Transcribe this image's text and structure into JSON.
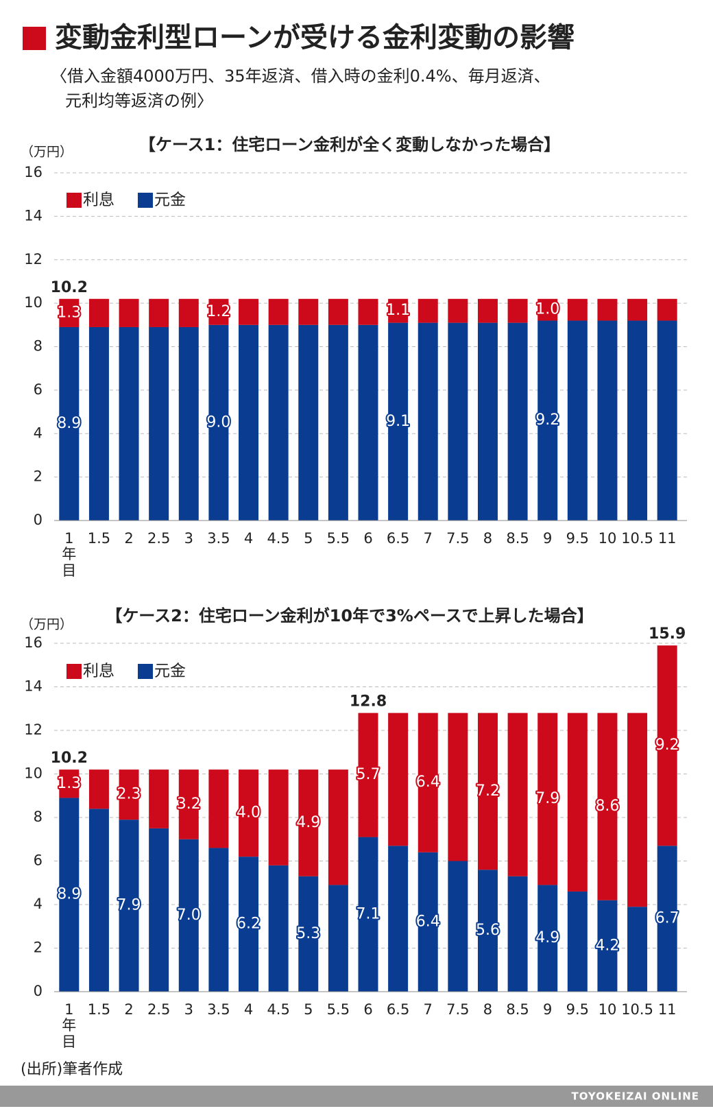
{
  "title": "変動金利型ローンが受ける金利変動の影響",
  "subtitle": [
    "〈借入金額4000万円、35年返済、借入時の金利0.4%、毎月返済、",
    "元利均等返済の例〉"
  ],
  "source": "(出所)筆者作成",
  "footer": "TOYOKEIZAI ONLINE",
  "chart_data": [
    {
      "type": "stacked_bar",
      "title": "【ケース1：住宅ローン金利が全く変動しなかった場合】",
      "y_unit": "（万円）",
      "x_unit": [
        "年",
        "目"
      ],
      "categories": [
        "1",
        "1.5",
        "2",
        "2.5",
        "3",
        "3.5",
        "4",
        "4.5",
        "5",
        "5.5",
        "6",
        "6.5",
        "7",
        "7.5",
        "8",
        "8.5",
        "9",
        "9.5",
        "10",
        "10.5",
        "11"
      ],
      "series": [
        {
          "name": "利息",
          "color": "#cc0a1b",
          "values": [
            1.3,
            1.3,
            1.3,
            1.3,
            1.3,
            1.2,
            1.2,
            1.2,
            1.2,
            1.2,
            1.2,
            1.1,
            1.1,
            1.1,
            1.1,
            1.1,
            1.0,
            1.0,
            1.0,
            1.0,
            1.0
          ],
          "value_labels": [
            "1.3",
            null,
            null,
            null,
            null,
            "1.2",
            null,
            null,
            null,
            null,
            null,
            "1.1",
            null,
            null,
            null,
            null,
            "1.0",
            null,
            null,
            null,
            null
          ]
        },
        {
          "name": "元金",
          "color": "#0a3d91",
          "values": [
            8.9,
            8.9,
            8.9,
            8.9,
            8.9,
            9.0,
            9.0,
            9.0,
            9.0,
            9.0,
            9.0,
            9.1,
            9.1,
            9.1,
            9.1,
            9.1,
            9.2,
            9.2,
            9.2,
            9.2,
            9.2
          ],
          "value_labels": [
            "8.9",
            null,
            null,
            null,
            null,
            "9.0",
            null,
            null,
            null,
            null,
            null,
            "9.1",
            null,
            null,
            null,
            null,
            "9.2",
            null,
            null,
            null,
            null
          ]
        }
      ],
      "totals": [
        10.2,
        null,
        null,
        null,
        null,
        null,
        null,
        null,
        null,
        null,
        null,
        null,
        null,
        null,
        null,
        null,
        null,
        null,
        null,
        null,
        null
      ],
      "ylim": [
        0,
        16
      ],
      "yticks": [
        0,
        2,
        4,
        6,
        8,
        10,
        12,
        14,
        16
      ],
      "grid": true
    },
    {
      "type": "stacked_bar",
      "title": "【ケース2：住宅ローン金利が10年で3%ペースで上昇した場合】",
      "y_unit": "（万円）",
      "x_unit": [
        "年",
        "目"
      ],
      "categories": [
        "1",
        "1.5",
        "2",
        "2.5",
        "3",
        "3.5",
        "4",
        "4.5",
        "5",
        "5.5",
        "6",
        "6.5",
        "7",
        "7.5",
        "8",
        "8.5",
        "9",
        "9.5",
        "10",
        "10.5",
        "11"
      ],
      "series": [
        {
          "name": "利息",
          "color": "#cc0a1b",
          "values": [
            1.3,
            1.8,
            2.3,
            2.7,
            3.2,
            3.6,
            4.0,
            4.4,
            4.9,
            5.3,
            5.7,
            6.1,
            6.4,
            6.8,
            7.2,
            7.5,
            7.9,
            8.2,
            8.6,
            8.9,
            9.2
          ],
          "value_labels": [
            "1.3",
            null,
            "2.3",
            null,
            "3.2",
            null,
            "4.0",
            null,
            "4.9",
            null,
            "5.7",
            null,
            "6.4",
            null,
            "7.2",
            null,
            "7.9",
            null,
            "8.6",
            null,
            "9.2"
          ]
        },
        {
          "name": "元金",
          "color": "#0a3d91",
          "values": [
            8.9,
            8.4,
            7.9,
            7.5,
            7.0,
            6.6,
            6.2,
            5.8,
            5.3,
            4.9,
            7.1,
            6.7,
            6.4,
            6.0,
            5.6,
            5.3,
            4.9,
            4.6,
            4.2,
            3.9,
            6.7
          ],
          "value_labels": [
            "8.9",
            null,
            "7.9",
            null,
            "7.0",
            null,
            "6.2",
            null,
            "5.3",
            null,
            "7.1",
            null,
            "6.4",
            null,
            "5.6",
            null,
            "4.9",
            null,
            "4.2",
            null,
            "6.7"
          ]
        }
      ],
      "totals": [
        10.2,
        null,
        null,
        null,
        null,
        null,
        null,
        null,
        null,
        null,
        12.8,
        null,
        null,
        null,
        null,
        null,
        null,
        null,
        null,
        null,
        15.9
      ],
      "ylim": [
        0,
        16
      ],
      "yticks": [
        0,
        2,
        4,
        6,
        8,
        10,
        12,
        14,
        16
      ],
      "grid": true
    }
  ]
}
